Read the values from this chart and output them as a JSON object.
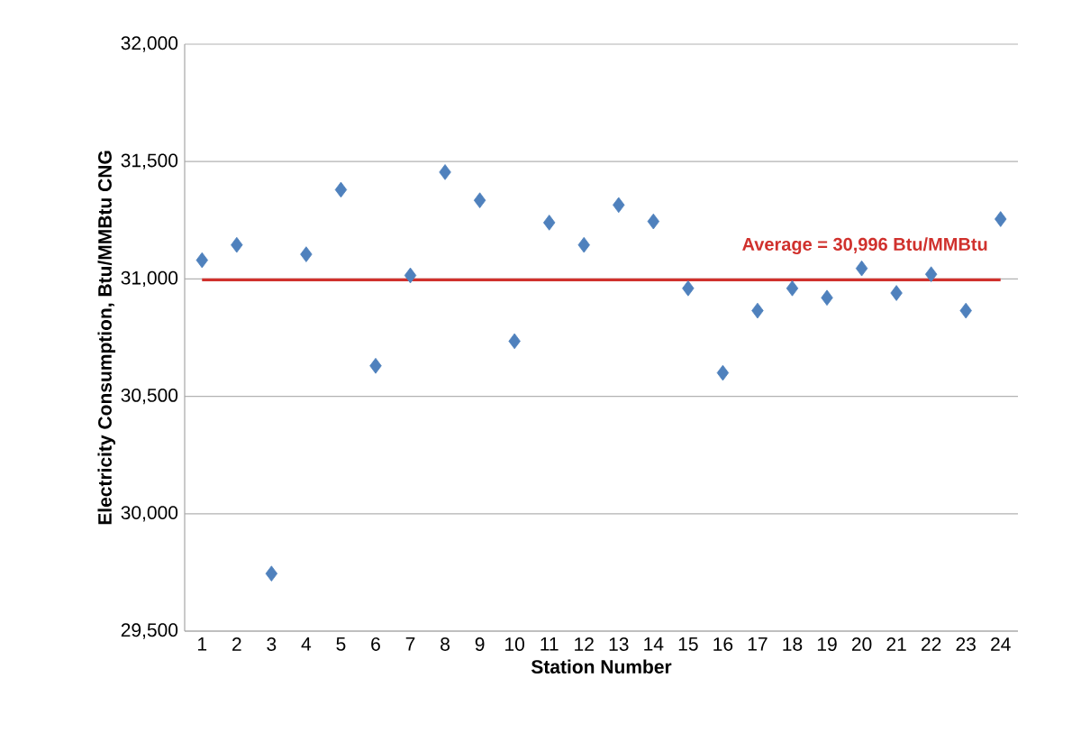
{
  "chart_data": {
    "type": "scatter",
    "xlabel": "Station Number",
    "ylabel": "Electricity Consumption,  Btu/MMBtu CNG",
    "categories": [
      "1",
      "2",
      "3",
      "4",
      "5",
      "6",
      "7",
      "8",
      "9",
      "10",
      "11",
      "12",
      "13",
      "14",
      "15",
      "16",
      "17",
      "18",
      "19",
      "20",
      "21",
      "22",
      "23",
      "24"
    ],
    "series": [
      {
        "color": "#4f81bd",
        "values": [
          31080,
          31145,
          29745,
          31105,
          31380,
          30630,
          31015,
          31455,
          31335,
          30735,
          31240,
          31145,
          31315,
          31245,
          30960,
          30600,
          30865,
          30960,
          30920,
          31045,
          30940,
          31020,
          30865,
          31255
        ]
      }
    ],
    "ylim": [
      29500,
      32000
    ],
    "yticks": [
      {
        "value": 29500,
        "label": "29,500"
      },
      {
        "value": 30000,
        "label": "30,000"
      },
      {
        "value": 30500,
        "label": "30,500"
      },
      {
        "value": 31000,
        "label": "31,000"
      },
      {
        "value": 31500,
        "label": "31,500"
      },
      {
        "value": 32000,
        "label": "32,000"
      }
    ],
    "ref_lines": [
      {
        "axis": "y",
        "value": 30996,
        "label": "Average = 30,996 Btu/MMBtu",
        "color": "#d0312d"
      }
    ],
    "grid": "y",
    "marker": "diamond"
  }
}
